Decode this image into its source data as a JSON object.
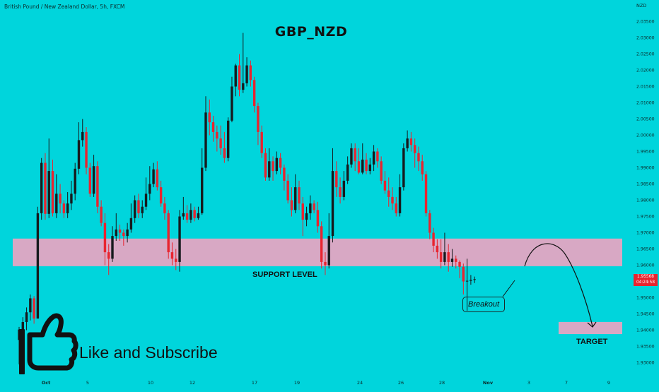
{
  "symbol": "British Pound / New Zealand Dollar, 5h, FXCM",
  "current_price": {
    "value": "1.95568",
    "countdown": "04:24:58"
  },
  "annotations": {
    "support_level": "SUPPORT LEVEL",
    "breakout": "Breakout",
    "target": "TARGET",
    "like_subscribe": "Like and Subscribe"
  },
  "colors": {
    "background": "#00d5dc",
    "bull": "#161a1d",
    "bear": "#e8242f",
    "zone": "#d8a8c4"
  },
  "chart_data": {
    "type": "candlestick",
    "title": "GBP_NZD",
    "ylabel": "NZD",
    "ylim": [
      1.9275,
      2.0375
    ],
    "y_ticks": [
      "2.03500",
      "2.03000",
      "2.02500",
      "2.02000",
      "2.01500",
      "2.01000",
      "2.00500",
      "2.00000",
      "1.99500",
      "1.99000",
      "1.98500",
      "1.98000",
      "1.97500",
      "1.97000",
      "1.96500",
      "1.96000",
      "1.95500",
      "1.95000",
      "1.94500",
      "1.94000",
      "1.93500",
      "1.93000"
    ],
    "x_ticks": [
      "Oct",
      "5",
      "10",
      "12",
      "17",
      "19",
      "24",
      "26",
      "28",
      "Nov",
      "3",
      "7",
      "9"
    ],
    "candles": [
      [
        1.937,
        1.9402,
        1.9295,
        1.941
      ],
      [
        1.9402,
        1.9425,
        1.936,
        1.944
      ],
      [
        1.9425,
        1.9455,
        1.94,
        1.947
      ],
      [
        1.9455,
        1.9498,
        1.943,
        1.951
      ],
      [
        1.9498,
        1.9436,
        1.942,
        1.9505
      ],
      [
        1.9436,
        1.976,
        1.9436,
        1.978
      ],
      [
        1.976,
        1.9915,
        1.974,
        1.993
      ],
      [
        1.9915,
        1.9758,
        1.974,
        1.9945
      ],
      [
        1.9758,
        1.989,
        1.9745,
        1.999
      ],
      [
        1.989,
        1.976,
        1.975,
        1.9925
      ],
      [
        1.976,
        1.982,
        1.9745,
        1.988
      ],
      [
        1.982,
        1.979,
        1.976,
        1.985
      ],
      [
        1.979,
        1.976,
        1.9745,
        1.98
      ],
      [
        1.976,
        1.979,
        1.9745,
        1.9825
      ],
      [
        1.979,
        1.982,
        1.977,
        1.986
      ],
      [
        1.982,
        1.9897,
        1.98,
        1.9915
      ],
      [
        1.9897,
        1.9985,
        1.988,
        2.004
      ],
      [
        1.9985,
        2.001,
        1.9965,
        2.005
      ],
      [
        2.001,
        1.99,
        1.988,
        2.0025
      ],
      [
        1.99,
        1.982,
        1.981,
        1.9915
      ],
      [
        1.982,
        1.9905,
        1.981,
        1.994
      ],
      [
        1.9905,
        1.978,
        1.976,
        1.992
      ],
      [
        1.978,
        1.973,
        1.972,
        1.98
      ],
      [
        1.973,
        1.964,
        1.96,
        1.976
      ],
      [
        1.964,
        1.962,
        1.957,
        1.9665
      ],
      [
        1.962,
        1.969,
        1.961,
        1.972
      ],
      [
        1.969,
        1.971,
        1.9675,
        1.976
      ],
      [
        1.971,
        1.97,
        1.9675,
        1.9725
      ],
      [
        1.97,
        1.969,
        1.966,
        1.971
      ],
      [
        1.969,
        1.971,
        1.967,
        1.973
      ],
      [
        1.971,
        1.9745,
        1.97,
        1.979
      ],
      [
        1.9745,
        1.98,
        1.973,
        1.9815
      ],
      [
        1.98,
        1.976,
        1.9745,
        1.982
      ],
      [
        1.976,
        1.978,
        1.9745,
        1.98
      ],
      [
        1.978,
        1.982,
        1.977,
        1.987
      ],
      [
        1.982,
        1.985,
        1.98,
        1.9905
      ],
      [
        1.985,
        1.9895,
        1.984,
        1.9915
      ],
      [
        1.9895,
        1.984,
        1.983,
        1.992
      ],
      [
        1.984,
        1.979,
        1.978,
        1.986
      ],
      [
        1.979,
        1.976,
        1.974,
        1.981
      ],
      [
        1.976,
        1.964,
        1.962,
        1.977
      ],
      [
        1.964,
        1.962,
        1.96,
        1.967
      ],
      [
        1.962,
        1.961,
        1.9585,
        1.965
      ],
      [
        1.961,
        1.975,
        1.958,
        1.977
      ],
      [
        1.975,
        1.976,
        1.974,
        1.981
      ],
      [
        1.976,
        1.974,
        1.973,
        1.9785
      ],
      [
        1.974,
        1.977,
        1.973,
        1.979
      ],
      [
        1.977,
        1.9745,
        1.9735,
        1.978
      ],
      [
        1.9745,
        1.976,
        1.974,
        1.978
      ],
      [
        1.976,
        1.99,
        1.9755,
        1.996
      ],
      [
        1.99,
        2.007,
        1.989,
        2.012
      ],
      [
        2.007,
        2.004,
        2.0,
        2.011
      ],
      [
        2.004,
        2.001,
        1.998,
        2.006
      ],
      [
        2.001,
        1.999,
        1.995,
        2.003
      ],
      [
        1.999,
        1.996,
        1.994,
        2.003
      ],
      [
        1.996,
        1.993,
        1.9915,
        2.001
      ],
      [
        1.993,
        2.0045,
        1.992,
        2.0055
      ],
      [
        2.0045,
        2.015,
        2.004,
        2.018
      ],
      [
        2.015,
        2.0215,
        2.012,
        2.022
      ],
      [
        2.0215,
        2.014,
        2.012,
        2.025
      ],
      [
        2.014,
        2.016,
        2.013,
        2.0315
      ],
      [
        2.016,
        2.0215,
        2.015,
        2.024
      ],
      [
        2.0215,
        2.017,
        2.015,
        2.023
      ],
      [
        2.017,
        2.009,
        2.007,
        2.018
      ],
      [
        2.009,
        2.001,
        1.997,
        2.01
      ],
      [
        2.001,
        1.9945,
        1.993,
        2.003
      ],
      [
        1.9945,
        1.987,
        1.986,
        1.996
      ],
      [
        1.987,
        1.992,
        1.986,
        1.996
      ],
      [
        1.992,
        1.989,
        1.986,
        1.9935
      ],
      [
        1.989,
        1.993,
        1.988,
        1.995
      ],
      [
        1.993,
        1.99,
        1.988,
        1.9945
      ],
      [
        1.99,
        1.986,
        1.983,
        1.991
      ],
      [
        1.986,
        1.98,
        1.979,
        1.988
      ],
      [
        1.98,
        1.977,
        1.975,
        1.984
      ],
      [
        1.977,
        1.984,
        1.976,
        1.988
      ],
      [
        1.984,
        1.979,
        1.977,
        1.986
      ],
      [
        1.979,
        1.974,
        1.969,
        1.981
      ],
      [
        1.974,
        1.976,
        1.972,
        1.978
      ],
      [
        1.976,
        1.979,
        1.974,
        1.9815
      ],
      [
        1.979,
        1.977,
        1.976,
        1.98
      ],
      [
        1.977,
        1.972,
        1.97,
        1.9795
      ],
      [
        1.972,
        1.961,
        1.959,
        1.9735
      ],
      [
        1.961,
        1.96,
        1.957,
        1.964
      ],
      [
        1.96,
        1.969,
        1.959,
        1.976
      ],
      [
        1.969,
        1.989,
        1.967,
        1.996
      ],
      [
        1.989,
        1.984,
        1.981,
        1.992
      ],
      [
        1.984,
        1.981,
        1.979,
        1.987
      ],
      [
        1.981,
        1.986,
        1.98,
        1.989
      ],
      [
        1.986,
        1.991,
        1.985,
        1.9935
      ],
      [
        1.991,
        1.996,
        1.99,
        1.9975
      ],
      [
        1.996,
        1.992,
        1.989,
        1.9975
      ],
      [
        1.992,
        1.9885,
        1.988,
        1.996
      ],
      [
        1.9885,
        1.9925,
        1.988,
        1.9975
      ],
      [
        1.9925,
        1.989,
        1.988,
        1.9945
      ],
      [
        1.989,
        1.991,
        1.988,
        1.993
      ],
      [
        1.991,
        1.995,
        1.989,
        1.997
      ],
      [
        1.995,
        1.992,
        1.99,
        1.996
      ],
      [
        1.992,
        1.986,
        1.985,
        1.9935
      ],
      [
        1.986,
        1.983,
        1.982,
        1.989
      ],
      [
        1.983,
        1.981,
        1.978,
        1.987
      ],
      [
        1.981,
        1.979,
        1.977,
        1.984
      ],
      [
        1.979,
        1.976,
        1.975,
        1.981
      ],
      [
        1.976,
        1.984,
        1.975,
        1.988
      ],
      [
        1.984,
        1.996,
        1.983,
        1.9975
      ],
      [
        1.996,
        1.999,
        1.995,
        2.0015
      ],
      [
        1.999,
        1.997,
        1.995,
        2.001
      ],
      [
        1.997,
        1.9945,
        1.99,
        1.999
      ],
      [
        1.9945,
        1.992,
        1.989,
        1.9965
      ],
      [
        1.992,
        1.988,
        1.986,
        1.994
      ],
      [
        1.988,
        1.976,
        1.975,
        1.989
      ],
      [
        1.976,
        1.97,
        1.968,
        1.977
      ],
      [
        1.97,
        1.966,
        1.964,
        1.9715
      ],
      [
        1.966,
        1.964,
        1.962,
        1.968
      ],
      [
        1.964,
        1.961,
        1.959,
        1.968
      ],
      [
        1.961,
        1.964,
        1.96,
        1.97
      ],
      [
        1.964,
        1.961,
        1.958,
        1.9665
      ],
      [
        1.961,
        1.962,
        1.9595,
        1.965
      ],
      [
        1.962,
        1.961,
        1.959,
        1.963
      ],
      [
        1.961,
        1.9595,
        1.956,
        1.9615
      ],
      [
        1.9595,
        1.955,
        1.951,
        1.9605
      ],
      [
        1.955,
        1.9552,
        1.946,
        1.962
      ],
      [
        1.9552,
        1.9555,
        1.954,
        1.957
      ],
      [
        1.9555,
        1.9557,
        1.9545,
        1.9565
      ]
    ],
    "zones": [
      {
        "from": 1.9597,
        "to": 1.9682,
        "label": "SUPPORT LEVEL"
      },
      {
        "from": 1.9388,
        "to": 1.9425,
        "label": "TARGET"
      }
    ]
  }
}
